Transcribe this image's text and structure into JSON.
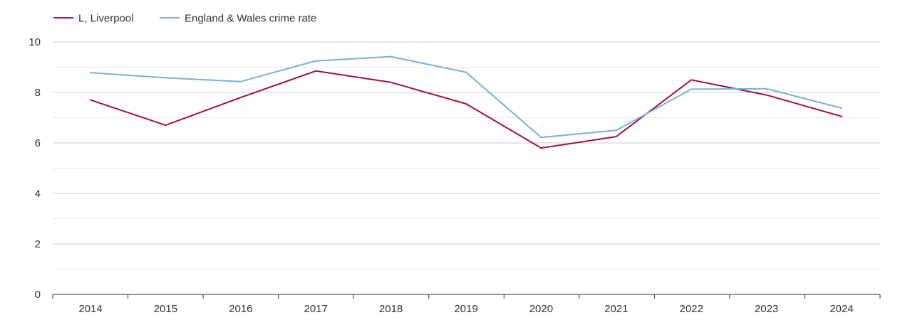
{
  "chart_data": {
    "type": "line",
    "title": "",
    "xlabel": "",
    "ylabel": "",
    "categories": [
      "2014",
      "2015",
      "2016",
      "2017",
      "2018",
      "2019",
      "2020",
      "2021",
      "2022",
      "2023",
      "2024"
    ],
    "ylim": [
      0,
      10
    ],
    "yticks": [
      0,
      2,
      4,
      6,
      8,
      10
    ],
    "grid": true,
    "legend_position": "top-left",
    "series": [
      {
        "name": "L, Liverpool",
        "color": "#a0123a",
        "values": [
          7.7,
          6.7,
          7.8,
          8.85,
          8.4,
          7.55,
          5.8,
          6.25,
          8.5,
          7.9,
          7.05
        ]
      },
      {
        "name": "England & Wales crime rate",
        "color": "#7ab0d4",
        "values": [
          8.78,
          8.58,
          8.43,
          9.25,
          9.42,
          8.8,
          6.22,
          6.5,
          8.13,
          8.15,
          7.38
        ]
      }
    ]
  }
}
